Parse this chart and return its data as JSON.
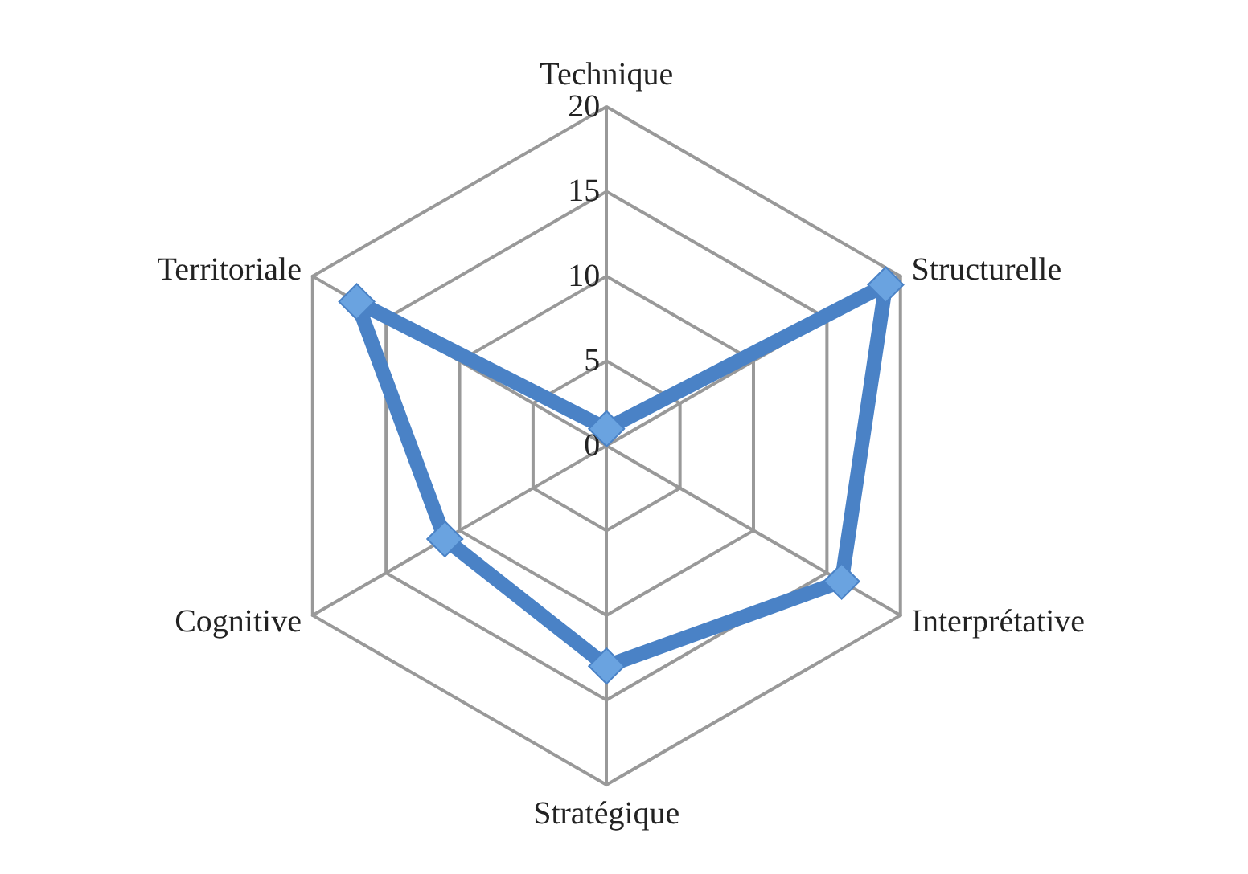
{
  "chart_data": {
    "type": "radar",
    "categories": [
      "Technique",
      "Structurelle",
      "Interprétative",
      "Stratégique",
      "Cognitive",
      "Territoriale"
    ],
    "series": [
      {
        "color": "#4a82c6",
        "values": [
          1,
          19,
          16,
          13,
          11,
          17
        ]
      }
    ],
    "ylim": [
      0,
      20
    ],
    "yticks": [
      0,
      5,
      10,
      15,
      20
    ],
    "grid": true,
    "marker": "diamond",
    "line_style": "solid"
  }
}
